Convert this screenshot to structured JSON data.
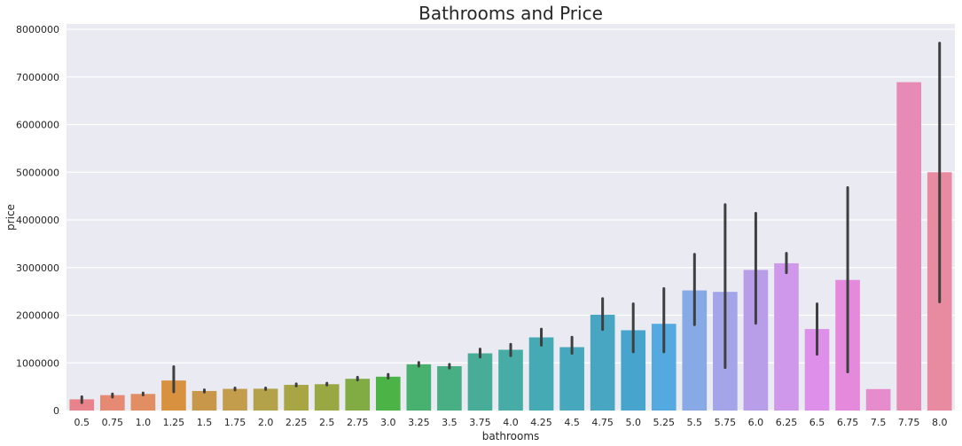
{
  "chart_data": {
    "type": "bar",
    "title": "Bathrooms and Price",
    "xlabel": "bathrooms",
    "ylabel": "price",
    "ylim": [
      0,
      8000000
    ],
    "yticks": [
      0,
      1000000,
      2000000,
      3000000,
      4000000,
      5000000,
      6000000,
      7000000,
      8000000
    ],
    "ytick_labels": [
      "0",
      "1000000",
      "2000000",
      "3000000",
      "4000000",
      "5000000",
      "6000000",
      "7000000",
      "8000000"
    ],
    "grid": true,
    "categories": [
      "0.5",
      "0.75",
      "1.0",
      "1.25",
      "1.5",
      "1.75",
      "2.0",
      "2.25",
      "2.5",
      "2.75",
      "3.0",
      "3.25",
      "3.5",
      "3.75",
      "4.0",
      "4.25",
      "4.5",
      "4.75",
      "5.0",
      "5.25",
      "5.5",
      "5.75",
      "6.0",
      "6.25",
      "6.5",
      "6.75",
      "7.5",
      "7.75",
      "8.0"
    ],
    "values": [
      235000,
      323000,
      348000,
      630000,
      410000,
      455000,
      458000,
      539000,
      553000,
      666000,
      710000,
      970000,
      930000,
      1200000,
      1275000,
      1535000,
      1330000,
      2010000,
      1685000,
      1820000,
      2520000,
      2490000,
      2950000,
      3090000,
      1710000,
      2740000,
      450000,
      6890000,
      5000000
    ],
    "error_low": [
      165000,
      282000,
      325000,
      390000,
      385000,
      430000,
      440000,
      515000,
      535000,
      640000,
      680000,
      930000,
      890000,
      1120000,
      1150000,
      1370000,
      1200000,
      1700000,
      1230000,
      1230000,
      1800000,
      900000,
      1830000,
      2890000,
      1180000,
      810000,
      null,
      null,
      2280000
    ],
    "error_high": [
      290000,
      350000,
      370000,
      920000,
      435000,
      475000,
      475000,
      560000,
      575000,
      700000,
      760000,
      1010000,
      970000,
      1290000,
      1390000,
      1710000,
      1540000,
      2350000,
      2240000,
      2560000,
      3280000,
      4320000,
      4140000,
      3300000,
      2240000,
      4680000,
      null,
      null,
      7710000
    ],
    "colors": [
      "#e8838b",
      "#e68a73",
      "#e28e63",
      "#d8913f",
      "#c9974a",
      "#c39d4c",
      "#b3a249",
      "#a8a544",
      "#9aa844",
      "#81ab43",
      "#4cb447",
      "#49b16f",
      "#48ae84",
      "#48ad98",
      "#46aca5",
      "#45aab3",
      "#46a7bd",
      "#48a6c3",
      "#47a5cd",
      "#53a9e0",
      "#87a9e6",
      "#a4a4e9",
      "#b89de8",
      "#cf98ea",
      "#de8fe9",
      "#e489dc",
      "#e68bcb",
      "#e78bb6",
      "#e88ba1"
    ]
  }
}
